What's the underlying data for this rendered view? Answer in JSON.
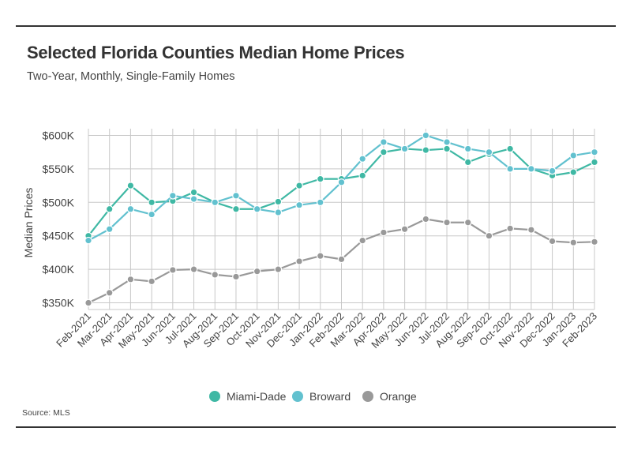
{
  "chart_data": {
    "type": "line",
    "title": "Selected Florida Counties Median Home Prices",
    "subtitle": "Two-Year, Monthly, Single-Family Homes",
    "ylabel": "Median Prices",
    "xlabel": "",
    "source": "Source: MLS",
    "ylim": [
      340000,
      610000
    ],
    "yticks": [
      350000,
      400000,
      450000,
      500000,
      550000,
      600000
    ],
    "ytick_labels": [
      "$350K",
      "$400K",
      "$450K",
      "$500K",
      "$550K",
      "$600K"
    ],
    "categories": [
      "Feb-2021",
      "Mar-2021",
      "Apr-2021",
      "May-2021",
      "Jun-2021",
      "Jul-2021",
      "Aug-2021",
      "Sep-2021",
      "Oct-2021",
      "Nov-2021",
      "Dec-2021",
      "Jan-2022",
      "Feb-2022",
      "Mar-2022",
      "Apr-2022",
      "May-2022",
      "Jun-2022",
      "Jul-2022",
      "Aug-2022",
      "Sep-2022",
      "Oct-2022",
      "Nov-2022",
      "Dec-2022",
      "Jan-2023",
      "Feb-2023"
    ],
    "grid": true,
    "legend_position": "bottom-center",
    "series": [
      {
        "name": "Miami-Dade",
        "color": "#3fb8a4",
        "values": [
          450000,
          490000,
          525000,
          500000,
          502000,
          515000,
          500000,
          490000,
          490000,
          501000,
          525000,
          535000,
          535000,
          540000,
          575000,
          580000,
          578000,
          580000,
          560000,
          572000,
          580000,
          550000,
          540000,
          545000,
          560000
        ]
      },
      {
        "name": "Broward",
        "color": "#62c1cf",
        "values": [
          443000,
          460000,
          490000,
          482000,
          510000,
          505000,
          500000,
          510000,
          490000,
          485000,
          496000,
          500000,
          530000,
          565000,
          590000,
          580000,
          600000,
          590000,
          580000,
          575000,
          550000,
          550000,
          547000,
          570000,
          575000
        ]
      },
      {
        "name": "Orange",
        "color": "#999999",
        "values": [
          350000,
          365000,
          385000,
          382000,
          399000,
          400000,
          392000,
          389000,
          397000,
          400000,
          412000,
          420000,
          415000,
          443000,
          455000,
          460000,
          475000,
          470000,
          470000,
          450000,
          461000,
          459000,
          442000,
          440000,
          441000
        ]
      }
    ]
  }
}
